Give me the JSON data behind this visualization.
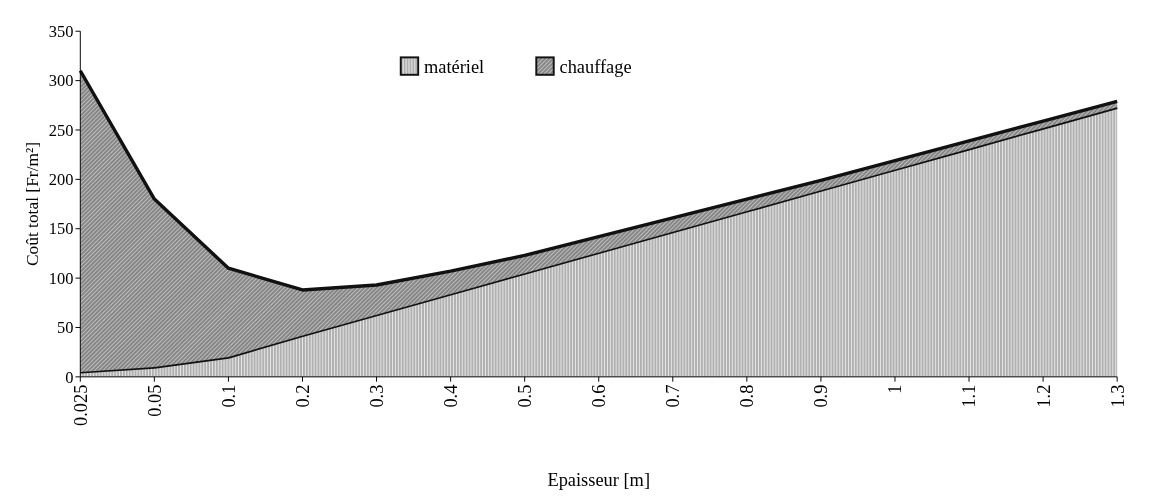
{
  "chart_data": {
    "type": "area",
    "stacked": true,
    "xlabel": "Epaisseur [m]",
    "ylabel": "Coût total [Fr/m²]",
    "categories": [
      "0.025",
      "0.05",
      "0.1",
      "0.2",
      "0.3",
      "0.4",
      "0.5",
      "0.6",
      "0.7",
      "0.8",
      "0.9",
      "1",
      "1.1",
      "1.2",
      "1.3"
    ],
    "series": [
      {
        "name": "matériel",
        "color": "#9a9a9a",
        "values": [
          5,
          10,
          20,
          42,
          63,
          84,
          105,
          126,
          147,
          168,
          189,
          210,
          231,
          252,
          273
        ]
      },
      {
        "name": "chauffage",
        "color": "#6e6e6e",
        "values": [
          305,
          170,
          90,
          46,
          30,
          23,
          18,
          16,
          14,
          12,
          10,
          9,
          8,
          7,
          6
        ]
      }
    ],
    "ylim": [
      0,
      350
    ],
    "yticks": [
      0,
      50,
      100,
      150,
      200,
      250,
      300,
      350
    ],
    "grid": false,
    "legend": "top"
  }
}
